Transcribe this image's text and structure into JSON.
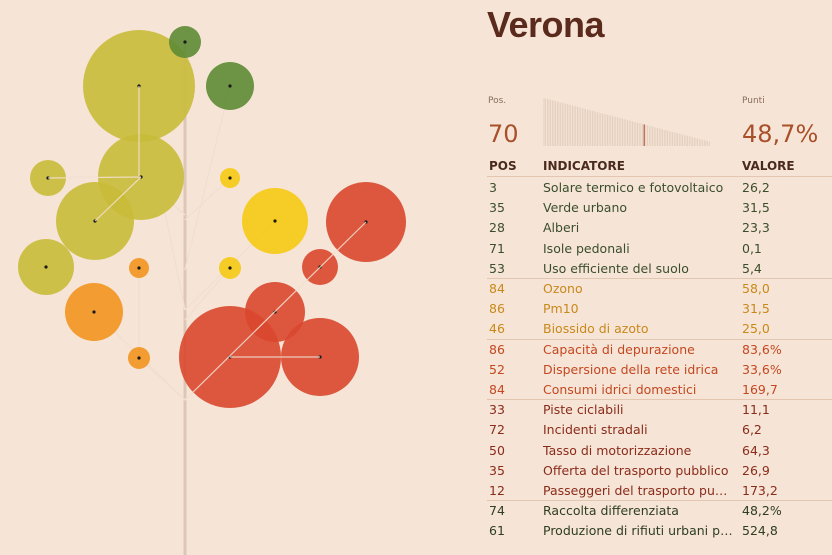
{
  "city": "Verona",
  "summary": {
    "pos_label": "Pos.",
    "pos_value": "70",
    "points_label": "Punti",
    "points_value": "48,7%",
    "rank_fraction": 0.6
  },
  "table": {
    "headers": {
      "pos": "POS",
      "indicator": "INDICATORE",
      "value": "VALORE"
    },
    "groups": [
      {
        "color": "#3b4d2b",
        "rows": [
          {
            "pos": "3",
            "indicator": "Solare termico e fotovoltaico",
            "value": "26,2"
          },
          {
            "pos": "35",
            "indicator": "Verde urbano",
            "value": "31,5"
          },
          {
            "pos": "28",
            "indicator": "Alberi",
            "value": "23,3"
          },
          {
            "pos": "71",
            "indicator": "Isole pedonali",
            "value": "0,1"
          },
          {
            "pos": "53",
            "indicator": "Uso efficiente del suolo",
            "value": "5,4"
          }
        ]
      },
      {
        "color": "#c9881a",
        "rows": [
          {
            "pos": "84",
            "indicator": "Ozono",
            "value": "58,0"
          },
          {
            "pos": "86",
            "indicator": "Pm10",
            "value": "31,5"
          },
          {
            "pos": "46",
            "indicator": "Biossido di azoto",
            "value": "25,0"
          }
        ]
      },
      {
        "color": "#c4471f",
        "rows": [
          {
            "pos": "86",
            "indicator": "Capacità di depurazione",
            "value": "83,6%"
          },
          {
            "pos": "52",
            "indicator": "Dispersione della rete idrica",
            "value": "33,6%"
          },
          {
            "pos": "84",
            "indicator": "Consumi idrici domestici",
            "value": "169,7"
          }
        ]
      },
      {
        "color": "#8a2b1a",
        "rows": [
          {
            "pos": "33",
            "indicator": "Piste ciclabili",
            "value": "11,1"
          },
          {
            "pos": "72",
            "indicator": "Incidenti stradali",
            "value": "6,2"
          },
          {
            "pos": "50",
            "indicator": "Tasso di motorizzazione",
            "value": "64,3"
          },
          {
            "pos": "35",
            "indicator": "Offerta del trasporto pubblico",
            "value": "26,9"
          },
          {
            "pos": "12",
            "indicator": "Passeggeri del trasporto pubblico",
            "value": "173,2"
          }
        ]
      },
      {
        "color": "#2f3d22",
        "rows": [
          {
            "pos": "74",
            "indicator": "Raccolta differenziata",
            "value": "48,2%"
          },
          {
            "pos": "61",
            "indicator": "Produzione di rifiuti urbani pro capite",
            "value": "524,8"
          }
        ]
      }
    ]
  },
  "tree": {
    "colors": {
      "green": "#5e8a35",
      "olive": "#c9bb3a",
      "orange": "#f2931f",
      "yellow": "#f6c913",
      "red": "#d9472d",
      "trunk": "#dcc6b6"
    }
  }
}
